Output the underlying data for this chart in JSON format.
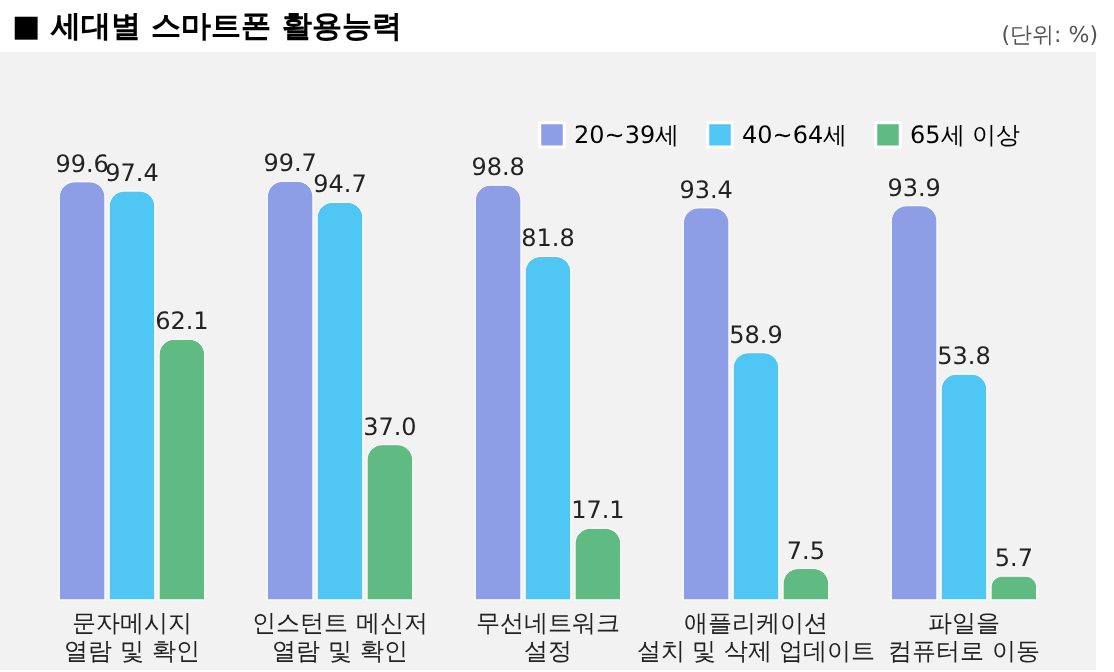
{
  "chart_data": {
    "type": "bar",
    "title": "■ 세대별 스마트폰 활용능력",
    "annotations": [
      "(단위: %)"
    ],
    "categories": [
      "문자메시지\n열람 및 확인",
      "인스턴트 메신저\n열람 및 확인",
      "무선네트워크\n설정",
      "애플리케이션\n설치 및 삭제 업데이트",
      "파일을\n컴퓨터로 이동"
    ],
    "series": [
      {
        "name": "20~39세",
        "color": "#8e9ee6",
        "values": [
          99.6,
          99.7,
          98.8,
          93.4,
          93.9
        ],
        "value_labels": [
          "99.6",
          "99.7",
          "98.8",
          "93.4",
          "93.9"
        ]
      },
      {
        "name": "40~64세",
        "color": "#4fc6f4",
        "values": [
          97.4,
          94.7,
          81.8,
          58.9,
          53.8
        ],
        "value_labels": [
          "97.4",
          "94.7",
          "81.8",
          "58.9",
          "53.8"
        ]
      },
      {
        "name": "65세 이상",
        "color": "#5fbb82",
        "values": [
          62.1,
          37.0,
          17.1,
          7.5,
          5.7
        ],
        "value_labels": [
          "62.1",
          "37.0",
          "17.1",
          "7.5",
          "5.7"
        ]
      }
    ],
    "legend": "top right"
  }
}
